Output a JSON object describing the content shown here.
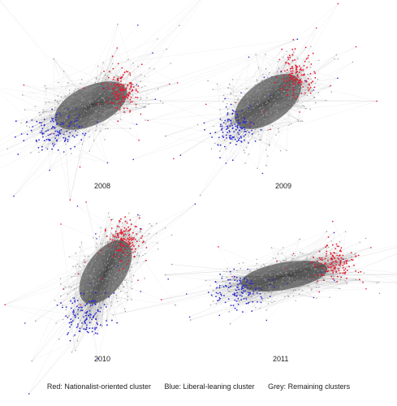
{
  "panels": [
    {
      "year": "2008"
    },
    {
      "year": "2009"
    },
    {
      "year": "2010"
    },
    {
      "year": "2011"
    }
  ],
  "legend": {
    "red": "Red: Nationalist-oriented cluster",
    "blue": "Blue: Liberal-leaning cluster",
    "grey": "Grey: Remaining clusters"
  },
  "colors": {
    "red": "#e8192c",
    "blue": "#2a2ad6",
    "grey": "#9a9a9a",
    "edge": "#6e6e6e"
  }
}
